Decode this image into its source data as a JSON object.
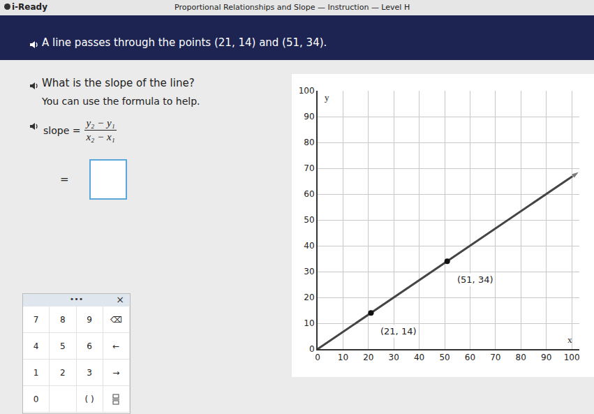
{
  "header": {
    "brand": "i-Ready",
    "lesson": "Proportional Relationships and Slope — Instruction — Level H"
  },
  "prompt": "A line passes through the points (21, 14) and (51, 34).",
  "question": "What is the slope of the line?",
  "hint": "You can use the formula to help.",
  "formula": {
    "label": "slope =",
    "numerator": "y₂ − y₁",
    "denominator": "x₂ − x₁",
    "answer_prefix": "="
  },
  "keypad": {
    "menu": "•••",
    "close": "×",
    "rows": [
      [
        "7",
        "8",
        "9",
        "⌫"
      ],
      [
        "4",
        "5",
        "6",
        "←"
      ],
      [
        "1",
        "2",
        "3",
        "→"
      ],
      [
        "0",
        null,
        "( )",
        null
      ]
    ]
  },
  "chart_data": {
    "type": "line",
    "x_label": "x",
    "y_label": "y",
    "xlim": [
      0,
      103
    ],
    "ylim": [
      0,
      100
    ],
    "xticks": [
      0,
      10,
      20,
      30,
      40,
      50,
      60,
      70,
      80,
      90,
      100
    ],
    "yticks": [
      0,
      10,
      20,
      30,
      40,
      50,
      60,
      70,
      80,
      90,
      100
    ],
    "grid": true,
    "series": [
      {
        "type": "line",
        "color": "#444444",
        "x": [
          0,
          103
        ],
        "values": [
          0,
          68.7
        ]
      },
      {
        "type": "scatter",
        "color": "#111111",
        "x": [
          21,
          51
        ],
        "values": [
          14,
          34
        ],
        "value_labels": [
          "(21, 14)",
          "(51, 34)"
        ]
      }
    ]
  }
}
